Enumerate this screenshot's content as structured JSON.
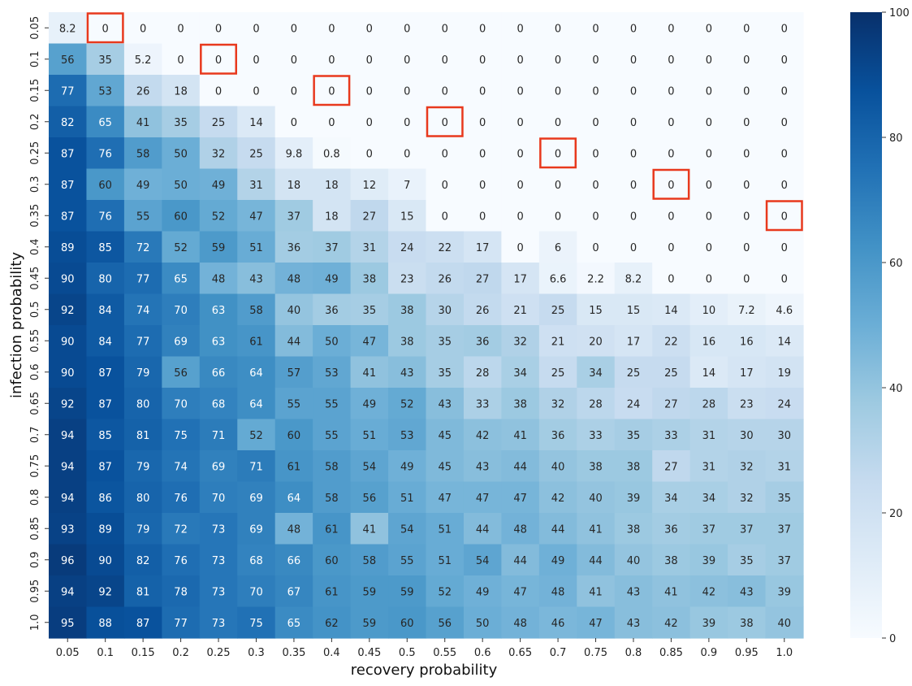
{
  "chart_data": {
    "type": "heatmap",
    "xlabel": "recovery probability",
    "ylabel": "infection probability",
    "x_ticks": [
      "0.05",
      "0.1",
      "0.15",
      "0.2",
      "0.25",
      "0.3",
      "0.35",
      "0.4",
      "0.45",
      "0.5",
      "0.55",
      "0.6",
      "0.65",
      "0.7",
      "0.75",
      "0.8",
      "0.85",
      "0.9",
      "0.95",
      "1.0"
    ],
    "y_ticks": [
      "0.05",
      "0.1",
      "0.15",
      "0.2",
      "0.25",
      "0.3",
      "0.35",
      "0.4",
      "0.45",
      "0.5",
      "0.55",
      "0.6",
      "0.65",
      "0.7",
      "0.75",
      "0.8",
      "0.85",
      "0.9",
      "0.95",
      "1.0"
    ],
    "colorbar": {
      "min": 0,
      "max": 100,
      "ticks": [
        "0",
        "20",
        "40",
        "60",
        "80",
        "100"
      ],
      "colormap": "Blues"
    },
    "highlight_color": "#e8391d",
    "highlight_cells": [
      [
        0,
        1
      ],
      [
        1,
        4
      ],
      [
        2,
        7
      ],
      [
        3,
        10
      ],
      [
        4,
        13
      ],
      [
        5,
        16
      ],
      [
        6,
        19
      ]
    ],
    "values": [
      [
        "8.2",
        "0",
        "0",
        "0",
        "0",
        "0",
        "0",
        "0",
        "0",
        "0",
        "0",
        "0",
        "0",
        "0",
        "0",
        "0",
        "0",
        "0",
        "0",
        "0"
      ],
      [
        "56",
        "35",
        "5.2",
        "0",
        "0",
        "0",
        "0",
        "0",
        "0",
        "0",
        "0",
        "0",
        "0",
        "0",
        "0",
        "0",
        "0",
        "0",
        "0",
        "0"
      ],
      [
        "77",
        "53",
        "26",
        "18",
        "0",
        "0",
        "0",
        "0",
        "0",
        "0",
        "0",
        "0",
        "0",
        "0",
        "0",
        "0",
        "0",
        "0",
        "0",
        "0"
      ],
      [
        "82",
        "65",
        "41",
        "35",
        "25",
        "14",
        "0",
        "0",
        "0",
        "0",
        "0",
        "0",
        "0",
        "0",
        "0",
        "0",
        "0",
        "0",
        "0",
        "0"
      ],
      [
        "87",
        "76",
        "58",
        "50",
        "32",
        "25",
        "9.8",
        "0.8",
        "0",
        "0",
        "0",
        "0",
        "0",
        "0",
        "0",
        "0",
        "0",
        "0",
        "0",
        "0"
      ],
      [
        "87",
        "60",
        "49",
        "50",
        "49",
        "31",
        "18",
        "18",
        "12",
        "7",
        "0",
        "0",
        "0",
        "0",
        "0",
        "0",
        "0",
        "0",
        "0",
        "0"
      ],
      [
        "87",
        "76",
        "55",
        "60",
        "52",
        "47",
        "37",
        "18",
        "27",
        "15",
        "0",
        "0",
        "0",
        "0",
        "0",
        "0",
        "0",
        "0",
        "0",
        "0"
      ],
      [
        "89",
        "85",
        "72",
        "52",
        "59",
        "51",
        "36",
        "37",
        "31",
        "24",
        "22",
        "17",
        "0",
        "6",
        "0",
        "0",
        "0",
        "0",
        "0",
        "0"
      ],
      [
        "90",
        "80",
        "77",
        "65",
        "48",
        "43",
        "48",
        "49",
        "38",
        "23",
        "26",
        "27",
        "17",
        "6.6",
        "2.2",
        "8.2",
        "0",
        "0",
        "0",
        "0"
      ],
      [
        "92",
        "84",
        "74",
        "70",
        "63",
        "58",
        "40",
        "36",
        "35",
        "38",
        "30",
        "26",
        "21",
        "25",
        "15",
        "15",
        "14",
        "10",
        "7.2",
        "4.6"
      ],
      [
        "90",
        "84",
        "77",
        "69",
        "63",
        "61",
        "44",
        "50",
        "47",
        "38",
        "35",
        "36",
        "32",
        "21",
        "20",
        "17",
        "22",
        "16",
        "16",
        "14"
      ],
      [
        "90",
        "87",
        "79",
        "56",
        "66",
        "64",
        "57",
        "53",
        "41",
        "43",
        "35",
        "28",
        "34",
        "25",
        "34",
        "25",
        "25",
        "14",
        "17",
        "19"
      ],
      [
        "92",
        "87",
        "80",
        "70",
        "68",
        "64",
        "55",
        "55",
        "49",
        "52",
        "43",
        "33",
        "38",
        "32",
        "28",
        "24",
        "27",
        "28",
        "23",
        "24"
      ],
      [
        "94",
        "85",
        "81",
        "75",
        "71",
        "52",
        "60",
        "55",
        "51",
        "53",
        "45",
        "42",
        "41",
        "36",
        "33",
        "35",
        "33",
        "31",
        "30",
        "30"
      ],
      [
        "94",
        "87",
        "79",
        "74",
        "69",
        "71",
        "61",
        "58",
        "54",
        "49",
        "45",
        "43",
        "44",
        "40",
        "38",
        "38",
        "27",
        "31",
        "32",
        "31"
      ],
      [
        "94",
        "86",
        "80",
        "76",
        "70",
        "69",
        "64",
        "58",
        "56",
        "51",
        "47",
        "47",
        "47",
        "42",
        "40",
        "39",
        "34",
        "34",
        "32",
        "35"
      ],
      [
        "93",
        "89",
        "79",
        "72",
        "73",
        "69",
        "48",
        "61",
        "41",
        "54",
        "51",
        "44",
        "48",
        "44",
        "41",
        "38",
        "36",
        "37",
        "37",
        "37"
      ],
      [
        "96",
        "90",
        "82",
        "76",
        "73",
        "68",
        "66",
        "60",
        "58",
        "55",
        "51",
        "54",
        "44",
        "49",
        "44",
        "40",
        "38",
        "39",
        "35",
        "37"
      ],
      [
        "94",
        "92",
        "81",
        "78",
        "73",
        "70",
        "67",
        "61",
        "59",
        "59",
        "52",
        "49",
        "47",
        "48",
        "41",
        "43",
        "41",
        "42",
        "43",
        "39"
      ],
      [
        "95",
        "88",
        "87",
        "77",
        "73",
        "75",
        "65",
        "62",
        "59",
        "60",
        "56",
        "50",
        "48",
        "46",
        "47",
        "43",
        "42",
        "39",
        "38",
        "40"
      ]
    ]
  }
}
